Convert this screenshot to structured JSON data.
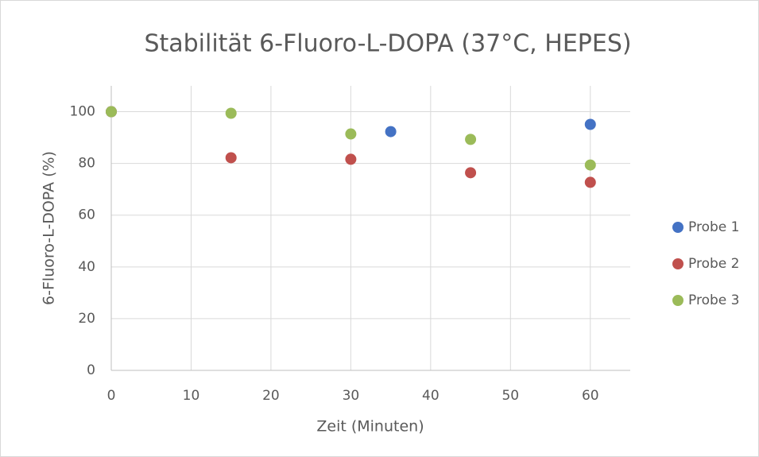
{
  "chart_data": {
    "type": "scatter",
    "title": "Stabilität 6-Fluoro-L-DOPA (37°C, HEPES)",
    "x_label": "Zeit (Minuten)",
    "y_label": "6-Fluoro-L-DOPA (%)",
    "xlim": [
      0,
      65
    ],
    "xticks": [
      0,
      10,
      20,
      30,
      40,
      50,
      60
    ],
    "ylim": [
      0,
      110
    ],
    "yticks": [
      0,
      20,
      40,
      60,
      80,
      100
    ],
    "grid": true,
    "legend": "right",
    "series": [
      {
        "name": "Probe 1",
        "color": "#4472c4",
        "x": [
          0,
          35,
          60
        ],
        "values": [
          100,
          92.3,
          95.1
        ]
      },
      {
        "name": "Probe 2",
        "color": "#c0504d",
        "x": [
          0,
          15,
          30,
          45,
          60
        ],
        "values": [
          100,
          82.2,
          81.6,
          76.4,
          72.7
        ]
      },
      {
        "name": "Probe 3",
        "color": "#9bbb59",
        "x": [
          0,
          15,
          30,
          45,
          60
        ],
        "values": [
          100,
          99.4,
          91.4,
          89.3,
          79.4
        ]
      }
    ]
  }
}
